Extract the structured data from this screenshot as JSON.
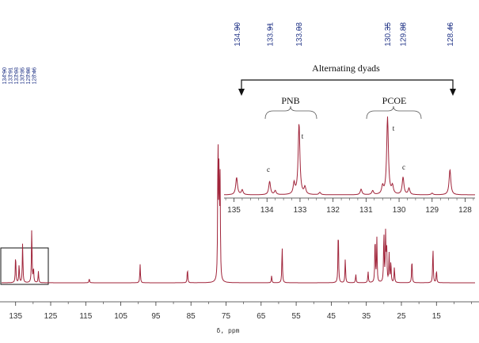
{
  "chart_data": {
    "type": "line",
    "xlabel": "δ, ppm",
    "main_axis": {
      "xlim": [
        139,
        4
      ],
      "ticks": [
        135,
        125,
        115,
        105,
        95,
        85,
        75,
        65,
        55,
        45,
        35,
        25,
        15
      ]
    },
    "inset_axis": {
      "xlim": [
        135.3,
        127.7
      ],
      "ticks": [
        135,
        134,
        133,
        132,
        131,
        130,
        129,
        128
      ]
    },
    "peak_labels": [
      "134.90",
      "133.91",
      "133.03",
      "130.35",
      "129.88",
      "128.46"
    ],
    "annotations": {
      "alternating": "Alternating dyads",
      "pnb": "PNB",
      "pcoe": "PCOE",
      "c_label": "c",
      "t_label": "t"
    },
    "main_peaks": [
      {
        "x": 135.0,
        "h": 0.2
      },
      {
        "x": 134.0,
        "h": 0.13
      },
      {
        "x": 133.0,
        "h": 0.28
      },
      {
        "x": 130.4,
        "h": 0.38
      },
      {
        "x": 129.9,
        "h": 0.1
      },
      {
        "x": 128.5,
        "h": 0.08
      },
      {
        "x": 114.0,
        "h": 0.03
      },
      {
        "x": 99.5,
        "h": 0.13
      },
      {
        "x": 86.0,
        "h": 0.1
      },
      {
        "x": 77.3,
        "h": 1.0
      },
      {
        "x": 77.0,
        "h": 0.75
      },
      {
        "x": 76.7,
        "h": 0.7
      },
      {
        "x": 62.0,
        "h": 0.05
      },
      {
        "x": 59.0,
        "h": 0.26
      },
      {
        "x": 43.0,
        "h": 0.39
      },
      {
        "x": 41.0,
        "h": 0.17
      },
      {
        "x": 38.0,
        "h": 0.06
      },
      {
        "x": 34.5,
        "h": 0.08
      },
      {
        "x": 32.5,
        "h": 0.33
      },
      {
        "x": 32.0,
        "h": 0.31
      },
      {
        "x": 30.0,
        "h": 0.36
      },
      {
        "x": 29.5,
        "h": 0.34
      },
      {
        "x": 29.2,
        "h": 0.24
      },
      {
        "x": 28.5,
        "h": 0.2
      },
      {
        "x": 28.0,
        "h": 0.15
      },
      {
        "x": 27.0,
        "h": 0.11
      },
      {
        "x": 22.0,
        "h": 0.17
      },
      {
        "x": 16.0,
        "h": 0.25
      },
      {
        "x": 15.0,
        "h": 0.09
      }
    ],
    "inset_peaks": [
      {
        "x": 134.92,
        "h": 0.22
      },
      {
        "x": 134.75,
        "h": 0.06
      },
      {
        "x": 133.92,
        "h": 0.17
      },
      {
        "x": 133.75,
        "h": 0.05
      },
      {
        "x": 133.18,
        "h": 0.14
      },
      {
        "x": 133.03,
        "h": 0.9
      },
      {
        "x": 132.85,
        "h": 0.09
      },
      {
        "x": 132.4,
        "h": 0.03
      },
      {
        "x": 131.15,
        "h": 0.07
      },
      {
        "x": 130.8,
        "h": 0.05
      },
      {
        "x": 130.5,
        "h": 0.1
      },
      {
        "x": 130.35,
        "h": 0.98
      },
      {
        "x": 130.2,
        "h": 0.1
      },
      {
        "x": 129.88,
        "h": 0.22
      },
      {
        "x": 129.7,
        "h": 0.08
      },
      {
        "x": 129.0,
        "h": 0.02
      },
      {
        "x": 128.46,
        "h": 0.32
      }
    ]
  }
}
